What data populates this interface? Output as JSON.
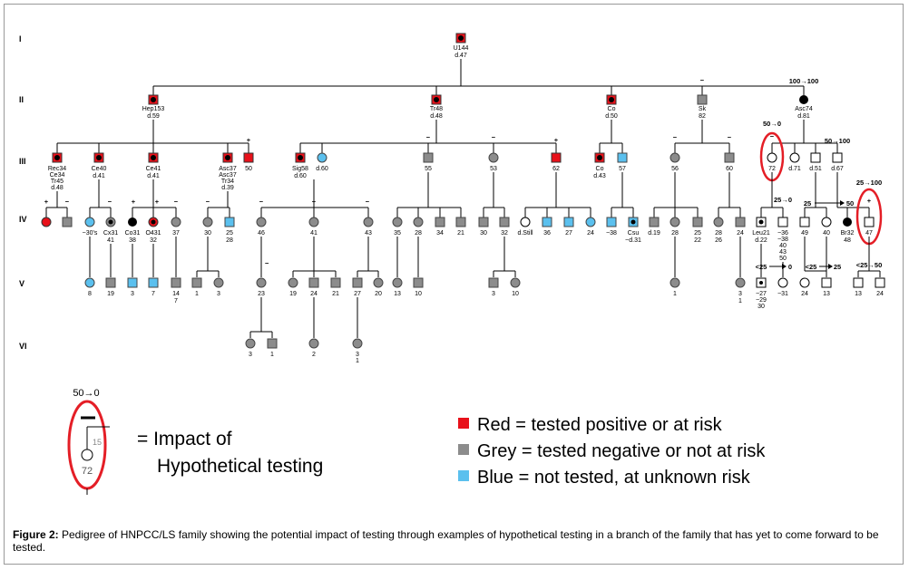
{
  "generations": [
    "I",
    "II",
    "III",
    "IV",
    "V",
    "VI"
  ],
  "gen1": {
    "age": "U144",
    "death": "d.47"
  },
  "gen2": [
    {
      "l1": "Hep153",
      "l2": "d.59"
    },
    {
      "l1": "Tr48",
      "l2": "d.48"
    },
    {
      "l1": "Co",
      "l2": "d.50"
    },
    {
      "l1": "Sk",
      "l2": "82"
    },
    {
      "l1": "Asc74",
      "l2": "d.81"
    }
  ],
  "gen3": [
    {
      "l1": "Rec34",
      "l2": "Ce34",
      "l3": "Tr45",
      "l4": "d.48"
    },
    {
      "l1": "Ce40",
      "l2": "d.41"
    },
    {
      "l1": "Ce41",
      "l2": "d.41"
    },
    {
      "l1": "Asc37",
      "l2": "Asc37",
      "l3": "Tr34",
      "l4": "d.39"
    },
    {
      "l1": "50"
    },
    {
      "l1": "Sig58",
      "l2": "d.60"
    },
    {
      "l1": "d.60"
    },
    {
      "l1": "55"
    },
    {
      "l1": "53"
    },
    {
      "l1": "62"
    },
    {
      "l1": "Co",
      "l2": "d.43"
    },
    {
      "l1": "57"
    },
    {
      "l1": "56"
    },
    {
      "l1": "60"
    },
    {
      "l1": "72"
    },
    {
      "l1": "d.71"
    },
    {
      "l1": "d.51"
    },
    {
      "l1": "d.67"
    }
  ],
  "gen4": [
    {
      "l1": "~30's"
    },
    {
      "l1": "Cx31",
      "l2": "41"
    },
    {
      "l1": "Co31",
      "l2": "38"
    },
    {
      "l1": "O431",
      "l2": "32"
    },
    {
      "l1": "37"
    },
    {
      "l1": "30"
    },
    {
      "l1": "25",
      "l2": "28"
    },
    {
      "l1": "46"
    },
    {
      "l1": "41"
    },
    {
      "l1": "43"
    },
    {
      "l1": "35"
    },
    {
      "l1": "28"
    },
    {
      "l1": "34"
    },
    {
      "l1": "21"
    },
    {
      "l1": "30"
    },
    {
      "l1": "32"
    },
    {
      "l1": "d.Still"
    },
    {
      "l1": "36"
    },
    {
      "l1": "27"
    },
    {
      "l1": "24"
    },
    {
      "l1": "~38"
    },
    {
      "l1": "Csu",
      "l2": "~d.31"
    },
    {
      "l1": "d.19"
    },
    {
      "l1": "28"
    },
    {
      "l1": "25",
      "l2": "22"
    },
    {
      "l1": "28",
      "l2": "26"
    },
    {
      "l1": "24"
    },
    {
      "l1": "Leu21",
      "l2": "d.22"
    },
    {
      "l1": "~36",
      "l2": "~38",
      "l3": "40",
      "l4": "43",
      "l5": "50"
    },
    {
      "l1": "49"
    },
    {
      "l1": "40"
    },
    {
      "l1": "Br32",
      "l2": "48"
    },
    {
      "l1": "47"
    }
  ],
  "gen5": [
    {
      "l1": "8"
    },
    {
      "l1": "19"
    },
    {
      "l1": "3"
    },
    {
      "l1": "7"
    },
    {
      "l1": "14",
      "l2": "7"
    },
    {
      "l1": "1"
    },
    {
      "l1": "3"
    },
    {
      "l1": "23"
    },
    {
      "l1": "19"
    },
    {
      "l1": "24"
    },
    {
      "l1": "21"
    },
    {
      "l1": "27"
    },
    {
      "l1": "20"
    },
    {
      "l1": "13"
    },
    {
      "l1": "10"
    },
    {
      "l1": "3"
    },
    {
      "l1": "10"
    },
    {
      "l1": "1"
    },
    {
      "l1": "3",
      "l2": "1"
    },
    {
      "l1": "~27",
      "l2": "~29",
      "l3": "30"
    },
    {
      "l1": "~31"
    },
    {
      "l1": "24"
    },
    {
      "l1": "13"
    },
    {
      "l1": "13"
    },
    {
      "l1": "24"
    }
  ],
  "gen6": [
    {
      "l1": "3"
    },
    {
      "l1": "1"
    },
    {
      "l1": "2"
    },
    {
      "l1": "3",
      "l2": "1"
    }
  ],
  "annotations": {
    "a_100_100": "100→100",
    "a_50_0": "50→0",
    "a_50_100": "50→100",
    "a_25_100": "25→100",
    "a_25_0": "25→0",
    "a_25_50": "25",
    "a_25_50b": "50",
    "a_lt25_0": "<25",
    "a_lt25_0b": "0",
    "a_lt25_25": "<25",
    "a_lt25_25b": "25",
    "a_lt25_50": "<25→50"
  },
  "signs": {
    "plus": "+",
    "minus": "−"
  },
  "legend": {
    "example_annotation": "50→0",
    "example_number": "15",
    "example_age": "72",
    "impact_line1": "= Impact of",
    "impact_line2": "Hypothetical testing",
    "red_label": "Red  = tested positive or at risk",
    "grey_label": "Grey = tested negative or not at risk",
    "blue_label": "Blue = not tested, at unknown risk"
  },
  "colors": {
    "red": "#e8111a",
    "grey": "#8c8c8c",
    "blue": "#5bc0ee",
    "oval": "#e41e26"
  },
  "caption": {
    "label": "Figure 2:",
    "text": " Pedigree of HNPCC/LS family showing the potential impact of testing through examples of hypothetical testing in a branch of the family that has yet to come forward to be tested."
  }
}
